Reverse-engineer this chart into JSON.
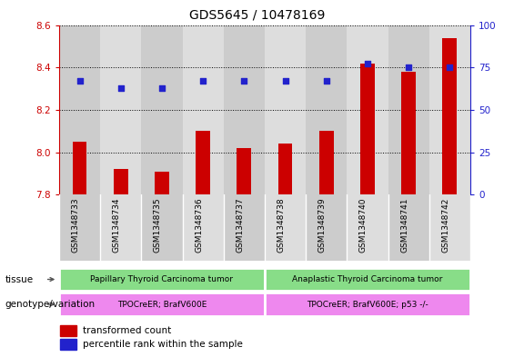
{
  "title": "GDS5645 / 10478169",
  "samples": [
    "GSM1348733",
    "GSM1348734",
    "GSM1348735",
    "GSM1348736",
    "GSM1348737",
    "GSM1348738",
    "GSM1348739",
    "GSM1348740",
    "GSM1348741",
    "GSM1348742"
  ],
  "transformed_count": [
    8.05,
    7.92,
    7.91,
    8.1,
    8.02,
    8.04,
    8.1,
    8.42,
    8.38,
    8.54
  ],
  "percentile_rank": [
    67,
    63,
    63,
    67,
    67,
    67,
    67,
    77,
    75,
    75
  ],
  "ylim_left": [
    7.8,
    8.6
  ],
  "ylim_right": [
    0,
    100
  ],
  "yticks_left": [
    7.8,
    8.0,
    8.2,
    8.4,
    8.6
  ],
  "yticks_right": [
    0,
    25,
    50,
    75,
    100
  ],
  "bar_color": "#cc0000",
  "dot_color": "#2222cc",
  "col_bg_even": "#cccccc",
  "col_bg_odd": "#dddddd",
  "tissue_groups": [
    {
      "label": "Papillary Thyroid Carcinoma tumor",
      "start": 0,
      "end": 5,
      "color": "#88dd88"
    },
    {
      "label": "Anaplastic Thyroid Carcinoma tumor",
      "start": 5,
      "end": 10,
      "color": "#88dd88"
    }
  ],
  "genotype_groups": [
    {
      "label": "TPOCreER; BrafV600E",
      "start": 0,
      "end": 5,
      "color": "#ee88ee"
    },
    {
      "label": "TPOCreER; BrafV600E; p53 -/-",
      "start": 5,
      "end": 10,
      "color": "#ee88ee"
    }
  ],
  "tissue_row_label": "tissue",
  "genotype_row_label": "genotype/variation",
  "legend_bar_label": "transformed count",
  "legend_dot_label": "percentile rank within the sample",
  "left_axis_color": "#cc0000",
  "right_axis_color": "#2222cc",
  "title_fontsize": 10,
  "tick_fontsize": 7.5,
  "bar_width": 0.35,
  "background_color": "#ffffff"
}
